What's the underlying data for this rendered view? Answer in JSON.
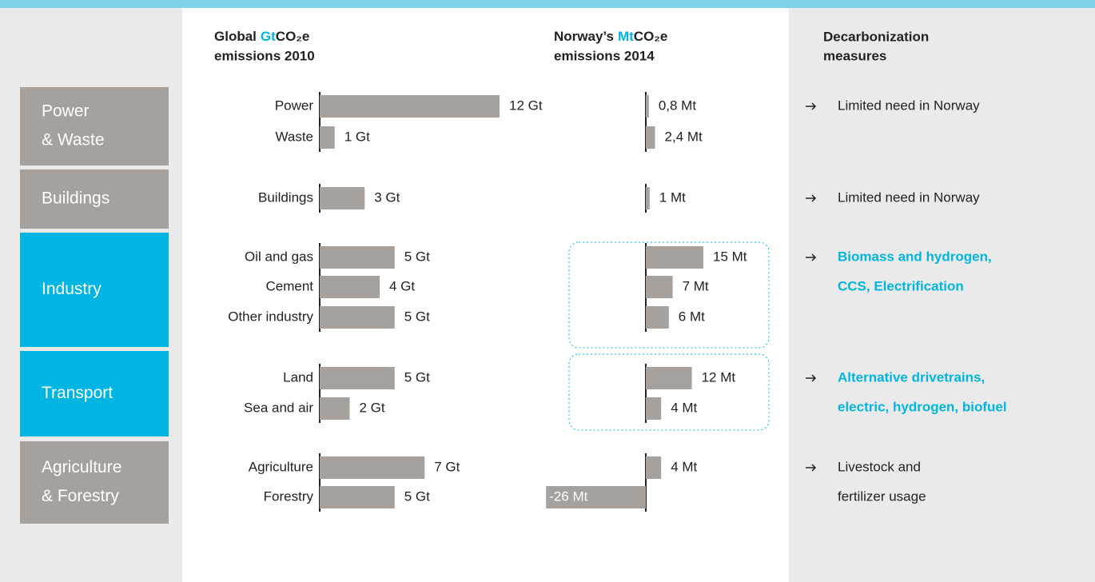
{
  "chart_data": [
    {
      "type": "bar",
      "orientation": "horizontal",
      "title": [
        "Global",
        "Gt",
        "CO₂e",
        "emissions 2010"
      ],
      "categories": [
        "Power",
        "Waste",
        "Buildings",
        "Oil and gas",
        "Cement",
        "Other industry",
        "Land",
        "Sea and air",
        "Agriculture",
        "Forestry"
      ],
      "values": [
        12,
        1,
        3,
        5,
        4,
        5,
        5,
        2,
        7,
        5
      ],
      "value_labels": [
        "12 Gt",
        "1 Gt",
        "3 Gt",
        "5 Gt",
        "4 Gt",
        "5 Gt",
        "5 Gt",
        "2 Gt",
        "7 Gt",
        "5 Gt"
      ],
      "color": "#a7a19e"
    },
    {
      "type": "bar",
      "orientation": "horizontal",
      "title": [
        "Norway’s",
        "Mt",
        "CO₂e",
        "emissions 2014"
      ],
      "values": [
        0.8,
        2.4,
        1,
        15,
        7,
        6,
        12,
        4,
        4,
        -26
      ],
      "value_labels": [
        "0,8 Mt",
        "2,4 Mt",
        "1 Mt",
        "15 Mt",
        "7 Mt",
        "6 Mt",
        "12 Mt",
        "4 Mt",
        "4 Mt",
        "-26 Mt"
      ],
      "color": "#a7a19e"
    }
  ],
  "sectors": [
    {
      "label": [
        "Power",
        "& Waste"
      ],
      "color": "#a7a19e"
    },
    {
      "label": [
        "Buildings"
      ],
      "color": "#a7a19e"
    },
    {
      "label": [
        "Industry"
      ],
      "color": "#00b5e2"
    },
    {
      "label": [
        "Transport"
      ],
      "color": "#00b5e2"
    },
    {
      "label": [
        "Agriculture",
        "& Forestry"
      ],
      "color": "#a7a19e"
    }
  ],
  "measures_header": [
    "Decarbonization",
    "measures"
  ],
  "measures": [
    {
      "lines": [
        "Limited need in Norway"
      ],
      "highlighted": false
    },
    {
      "lines": [
        "Limited need in Norway"
      ],
      "highlighted": false
    },
    {
      "lines": [
        "Biomass and hydrogen,",
        "CCS, Electrification"
      ],
      "highlighted": true
    },
    {
      "lines": [
        "Alternative drivetrains,",
        "electric, hydrogen, biofuel"
      ],
      "highlighted": true
    },
    {
      "lines": [
        "Livestock and",
        "fertilizer usage"
      ],
      "highlighted": false
    }
  ]
}
